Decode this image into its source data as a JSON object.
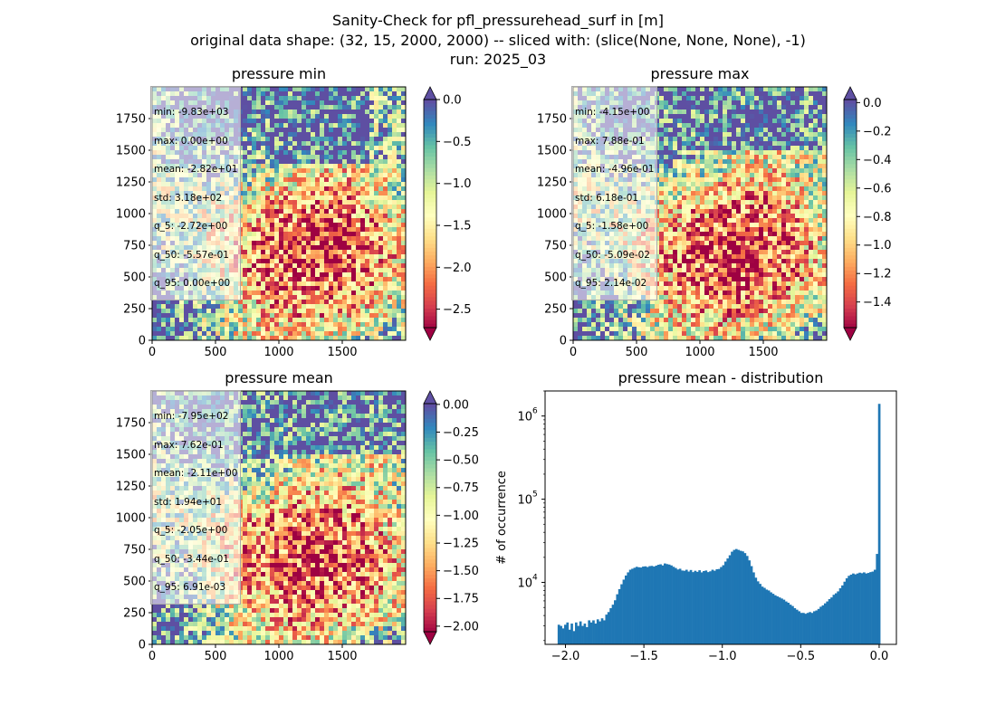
{
  "title": {
    "line1": "Sanity-Check for pfl_pressurehead_surf in [m]",
    "line2": "original data shape: (32, 15, 2000, 2000) -- sliced with: (slice(None, None, None), -1)",
    "line3": "run: 2025_03"
  },
  "colormap": "Spectral",
  "colors": {
    "spectral": [
      "#9e0142",
      "#d53e4f",
      "#f46d43",
      "#fdae61",
      "#fee08b",
      "#ffffbf",
      "#e6f598",
      "#abdda4",
      "#66c2a5",
      "#3288bd",
      "#5e4fa2"
    ],
    "hist_bar": "#1f77b4",
    "extend_over": "#5e4fa2"
  },
  "panels": [
    {
      "title": "pressure min",
      "stats": [
        "min: -9.83e+03",
        "max: 0.00e+00",
        "mean: -2.82e+01",
        "std: 3.18e+02",
        "q_5: -2.72e+00",
        "q_50: -5.57e-01",
        "q_95: 0.00e+00"
      ],
      "x_ticks": [
        "0",
        "500",
        "1000",
        "1500"
      ],
      "y_ticks": [
        "0",
        "250",
        "500",
        "750",
        "1000",
        "1250",
        "1500",
        "1750"
      ],
      "cbar_range": [
        -2.72,
        0.0
      ],
      "cbar_ticks": [
        "0.0",
        "−0.5",
        "−1.0",
        "−1.5",
        "−2.0",
        "−2.5"
      ],
      "cbar_tick_values": [
        0.0,
        -0.5,
        -1.0,
        -1.5,
        -2.0,
        -2.5
      ],
      "cbar_extend": "both"
    },
    {
      "title": "pressure max",
      "stats": [
        "min: -4.15e+00",
        "max: 7.88e-01",
        "mean: -4.96e-01",
        "std: 6.18e-01",
        "q_5: -1.58e+00",
        "q_50: -5.09e-02",
        "q_95: 2.14e-02"
      ],
      "x_ticks": [
        "0",
        "500",
        "1000",
        "1500"
      ],
      "y_ticks": [
        "0",
        "250",
        "500",
        "750",
        "1000",
        "1250",
        "1500",
        "1750"
      ],
      "cbar_range": [
        -1.58,
        0.0214
      ],
      "cbar_ticks": [
        "0.0",
        "−0.2",
        "−0.4",
        "−0.6",
        "−0.8",
        "−1.0",
        "−1.2",
        "−1.4"
      ],
      "cbar_tick_values": [
        0.0,
        -0.2,
        -0.4,
        -0.6,
        -0.8,
        -1.0,
        -1.2,
        -1.4
      ],
      "cbar_extend": "both"
    },
    {
      "title": "pressure mean",
      "stats": [
        "min: -7.95e+02",
        "max: 7.62e-01",
        "mean: -2.11e+00",
        "std: 1.94e+01",
        "q_5: -2.05e+00",
        "q_50: -3.44e-01",
        "q_95: 6.91e-03"
      ],
      "x_ticks": [
        "0",
        "500",
        "1000",
        "1500"
      ],
      "y_ticks": [
        "0",
        "250",
        "500",
        "750",
        "1000",
        "1250",
        "1500",
        "1750"
      ],
      "cbar_range": [
        -2.05,
        0.0069
      ],
      "cbar_ticks": [
        "0.00",
        "−0.25",
        "−0.50",
        "−0.75",
        "−1.00",
        "−1.25",
        "−1.50",
        "−1.75",
        "−2.00"
      ],
      "cbar_tick_values": [
        0.0,
        -0.25,
        -0.5,
        -0.75,
        -1.0,
        -1.25,
        -1.5,
        -1.75,
        -2.0
      ],
      "cbar_extend": "both"
    }
  ],
  "chart_data": {
    "type": "bar",
    "title": "pressure mean - distribution",
    "xlabel": "",
    "ylabel": "# of occurrence",
    "yscale": "log",
    "xlim": [
      -2.13,
      0.11
    ],
    "ylim": [
      1800,
      2000000
    ],
    "x_ticks": [
      "−2.0",
      "−1.5",
      "−1.0",
      "−0.5",
      "0.0"
    ],
    "x_tick_values": [
      -2.0,
      -1.5,
      -1.0,
      -0.5,
      0.0
    ],
    "y_ticks": [
      "10",
      "10",
      "10"
    ],
    "y_tick_exponents": [
      "4",
      "5",
      "6"
    ],
    "y_tick_values": [
      10000,
      100000,
      1000000
    ],
    "bin_range": [
      -2.05,
      0.0069
    ],
    "values": [
      3100,
      3000,
      2800,
      3100,
      3300,
      2700,
      3200,
      2600,
      3300,
      3000,
      3400,
      3000,
      3200,
      2900,
      3500,
      3300,
      3500,
      3200,
      3600,
      3400,
      3700,
      3500,
      4100,
      4400,
      4900,
      5400,
      6100,
      7200,
      8300,
      9500,
      10800,
      12100,
      13200,
      14200,
      14600,
      15000,
      15400,
      15200,
      15100,
      15500,
      15600,
      15300,
      15700,
      15800,
      15500,
      15900,
      16300,
      16500,
      16000,
      16900,
      16600,
      16400,
      16000,
      15400,
      14900,
      14300,
      14600,
      13900,
      13800,
      14200,
      13500,
      14100,
      13300,
      13800,
      13400,
      14000,
      13200,
      13700,
      13900,
      13300,
      13600,
      14200,
      13800,
      14400,
      14500,
      15300,
      16100,
      17800,
      19400,
      21200,
      23400,
      24600,
      25200,
      24600,
      24000,
      23600,
      22500,
      20800,
      18400,
      15700,
      13200,
      11400,
      10300,
      9600,
      8900,
      8600,
      8200,
      8000,
      7600,
      7300,
      7000,
      6800,
      6600,
      6400,
      6200,
      5900,
      5700,
      5400,
      5200,
      4900,
      4700,
      4500,
      4300,
      4300,
      4200,
      4300,
      4400,
      4300,
      4500,
      4600,
      4800,
      5100,
      5300,
      5600,
      5900,
      6300,
      6600,
      7100,
      7400,
      7800,
      8500,
      9200,
      10200,
      11200,
      12000,
      12400,
      12800,
      12500,
      12800,
      13100,
      12900,
      13200,
      12800,
      13000,
      13300,
      13500,
      14200,
      22000,
      1400000
    ]
  }
}
